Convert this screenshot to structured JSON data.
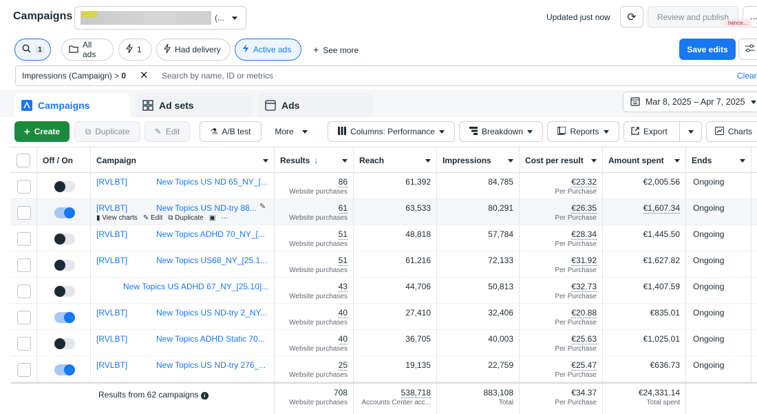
{
  "header": {
    "title": "Campaigns",
    "account_suffix": "(...",
    "updated": "Updated just now",
    "review_label": "Review and publish",
    "more_label": "...",
    "hence_label": "hence..."
  },
  "filters": {
    "search_count": "1",
    "all_ads": "All ads",
    "bolt_count": "1",
    "had_delivery": "Had delivery",
    "active_ads": "Active ads",
    "see_more": "See more",
    "save_edits": "Save edits"
  },
  "search": {
    "token_label": "Impressions (Campaign) >",
    "token_value": "0",
    "placeholder": "Search by name, ID or metrics",
    "clear": "Clear"
  },
  "tabs": [
    {
      "label": "Campaigns"
    },
    {
      "label": "Ad sets"
    },
    {
      "label": "Ads"
    }
  ],
  "date_range": "Mar 8, 2025 – Apr 7, 2025",
  "toolbar": {
    "create": "Create",
    "duplicate": "Duplicate",
    "edit": "Edit",
    "ab_test": "A/B test",
    "more": "More",
    "columns": "Columns: Performance",
    "breakdown": "Breakdown",
    "reports": "Reports",
    "export": "Export",
    "charts": "Charts"
  },
  "columns": {
    "offon": "Off / On",
    "campaign": "Campaign",
    "results": "Results",
    "reach": "Reach",
    "impressions": "Impressions",
    "cpr": "Cost per result",
    "spent": "Amount spent",
    "ends": "Ends"
  },
  "row_actions": {
    "view_charts": "View charts",
    "edit": "Edit",
    "duplicate": "Duplicate",
    "more": "···"
  },
  "rows": [
    {
      "prefix": "[RVLBT]",
      "name": "New Topics US ND 65_NY_[...",
      "on": false,
      "results": "86",
      "results_sub": "Website purchases",
      "reach": "61,392",
      "impressions": "84,785",
      "cpr": "€23.32",
      "cpr_sub": "Per Purchase",
      "spent": "€2,005.56",
      "ends": "Ongoing"
    },
    {
      "prefix": "[RVLBT]",
      "name": "New Topics US ND-try 88...",
      "on": true,
      "results": "61",
      "results_sub": "Website purchases",
      "reach": "63,533",
      "impressions": "80,291",
      "cpr": "€26.35",
      "cpr_sub": "Per Purchase",
      "spent": "€1,607.34",
      "ends": "Ongoing"
    },
    {
      "prefix": "[RVLBT]",
      "name": "New Topics ADHD 70_NY_[...",
      "on": false,
      "results": "51",
      "results_sub": "Website purchases",
      "reach": "48,818",
      "impressions": "57,784",
      "cpr": "€28.34",
      "cpr_sub": "Per Purchase",
      "spent": "€1,445.50",
      "ends": "Ongoing"
    },
    {
      "prefix": "[RVLBT]",
      "name": "New Topics US68_NY_[25.1...",
      "on": false,
      "results": "51",
      "results_sub": "Website purchases",
      "reach": "61,216",
      "impressions": "72,133",
      "cpr": "€31.92",
      "cpr_sub": "Per Purchase",
      "spent": "€1,627.82",
      "ends": "Ongoing"
    },
    {
      "prefix": "",
      "name": "New Topics US ADHD 67_NY_[25.10]...",
      "on": false,
      "results": "43",
      "results_sub": "Website purchases",
      "reach": "44,706",
      "impressions": "50,813",
      "cpr": "€32.73",
      "cpr_sub": "Per Purchase",
      "spent": "€1,407.59",
      "ends": "Ongoing"
    },
    {
      "prefix": "[RVLBT]",
      "name": "New Topics US ND-try 2_NY...",
      "on": true,
      "results": "40",
      "results_sub": "Website purchases",
      "reach": "27,410",
      "impressions": "32,406",
      "cpr": "€20.88",
      "cpr_sub": "Per Purchase",
      "spent": "€835.01",
      "ends": "Ongoing"
    },
    {
      "prefix": "[RVLBT]",
      "name": "New Topics ADHD Static 70...",
      "on": false,
      "results": "40",
      "results_sub": "Website purchases",
      "reach": "36,705",
      "impressions": "40,003",
      "cpr": "€25.63",
      "cpr_sub": "Per Purchase",
      "spent": "€1,025.01",
      "ends": "Ongoing"
    },
    {
      "prefix": "[RVLBT]",
      "name": "New Topics US ND-try 276_...",
      "on": true,
      "results": "25",
      "results_sub": "Website purchases",
      "reach": "19,135",
      "impressions": "22,759",
      "cpr": "€25.47",
      "cpr_sub": "Per Purchase",
      "spent": "€636.73",
      "ends": "Ongoing"
    }
  ],
  "footer": {
    "label": "Results from 62 campaigns",
    "results": "708",
    "results_sub": "Website purchases",
    "reach": "538,718",
    "reach_sub": "Accounts Center acc...",
    "impressions": "883,108",
    "impressions_sub": "Total",
    "cpr": "€34.37",
    "cpr_sub": "Per Purchase",
    "spent": "€24,331.14",
    "spent_sub": "Total spent"
  }
}
